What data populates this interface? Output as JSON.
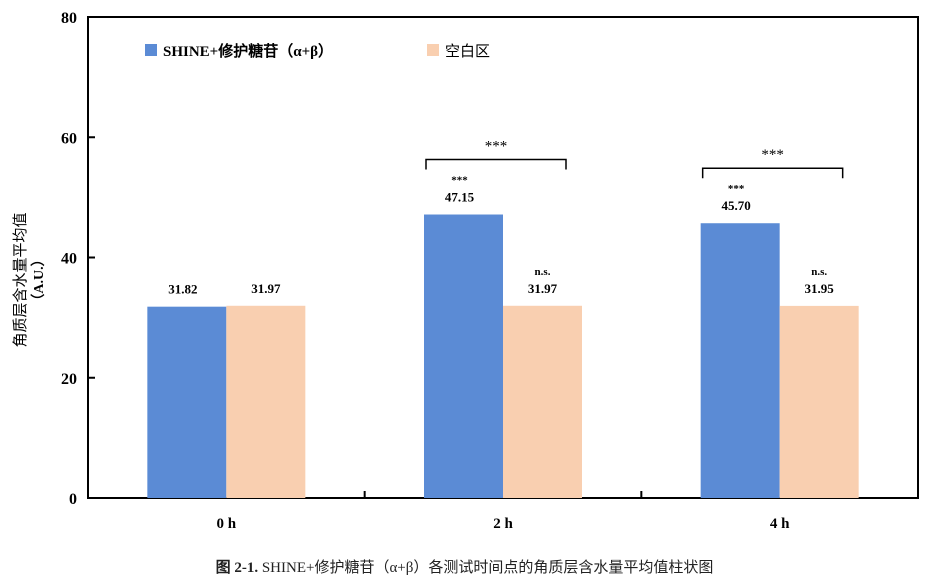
{
  "chart_data": {
    "type": "bar",
    "title": "",
    "categories": [
      "0 h",
      "2 h",
      "4 h"
    ],
    "series": [
      {
        "name": "SHINE+修护糖苷（α+β）",
        "color": "#5B8BD5",
        "values": [
          31.82,
          47.15,
          45.7
        ]
      },
      {
        "name": "空白区",
        "color": "#F9CFB0",
        "values": [
          31.97,
          31.97,
          31.95
        ]
      }
    ],
    "data_labels": {
      "SHINE+修护糖苷（α+β）": [
        "31.82",
        "47.15",
        "45.70"
      ],
      "空白区": [
        "31.97",
        "31.97",
        "31.95"
      ]
    },
    "significance": {
      "vs_baseline_series1": [
        "",
        "***",
        "***"
      ],
      "vs_baseline_series2": [
        "",
        "n.s.",
        "n.s."
      ],
      "between_groups": [
        "",
        "***",
        "***"
      ]
    },
    "xlabel": "",
    "ylabel": "角质层含水量平均值（A.U.）",
    "ylim": [
      0,
      80
    ],
    "yticks": [
      "0",
      "20",
      "40",
      "60",
      "80"
    ],
    "grid": false,
    "legend_position": "top-left inside"
  },
  "legend": {
    "series1": "SHINE+修护糖苷（α+β）",
    "series2": "空白区"
  },
  "axis": {
    "ylabel_line1": "角质层含水量平均值",
    "ylabel_line2": "（A.U.）"
  },
  "caption": {
    "prefix": "图 2-1.",
    "text": " SHINE+修护糖苷（α+β）各测试时间点的角质层含水量平均值柱状图"
  }
}
